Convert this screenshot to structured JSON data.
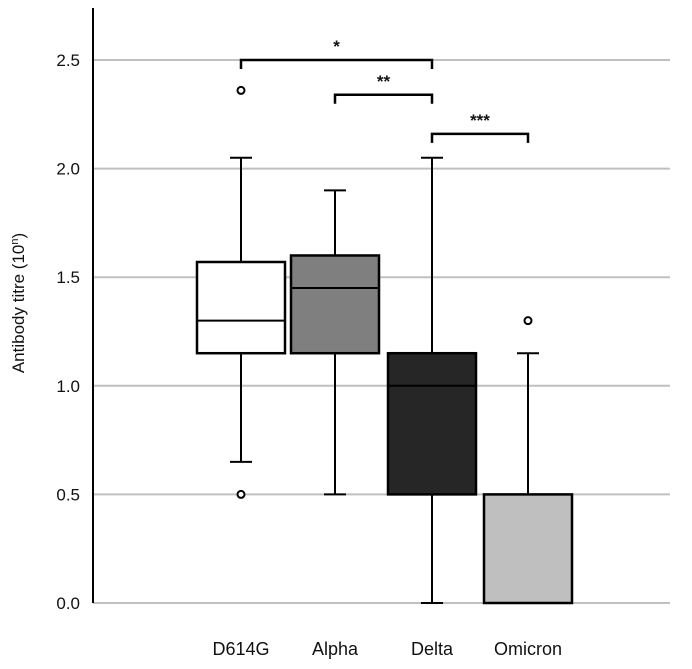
{
  "chart_data": {
    "type": "box",
    "ylabel_main": "Antibody titre (10",
    "ylabel_sup": "n",
    "ylabel_end": ")",
    "xlabel": "",
    "ylim": [
      0,
      2.7
    ],
    "yticks": [
      0.0,
      0.5,
      1.0,
      1.5,
      2.0,
      2.5
    ],
    "ytick_labels": [
      "0.0",
      "0.5",
      "1.0",
      "1.5",
      "2.0",
      "2.5"
    ],
    "grid": true,
    "categories": [
      "D614G",
      "Alpha",
      "Delta",
      "Omicron"
    ],
    "boxes": [
      {
        "name": "D614G",
        "whisker_low": 0.65,
        "q1": 1.15,
        "median": 1.3,
        "q3": 1.57,
        "whisker_high": 2.05,
        "outliers": [
          0.5,
          2.36
        ],
        "fill": "#ffffff"
      },
      {
        "name": "Alpha",
        "whisker_low": 0.5,
        "q1": 1.15,
        "median": 1.45,
        "q3": 1.6,
        "whisker_high": 1.9,
        "outliers": [],
        "fill": "#7f7f7f"
      },
      {
        "name": "Delta",
        "whisker_low": 0.0,
        "q1": 0.5,
        "median": 1.0,
        "q3": 1.15,
        "whisker_high": 2.05,
        "outliers": [],
        "fill": "#262626"
      },
      {
        "name": "Omicron",
        "whisker_low": 0.0,
        "q1": 0.0,
        "median": 0.0,
        "q3": 0.5,
        "whisker_high": 1.15,
        "outliers": [
          1.3
        ],
        "fill": "#bfbfbf"
      }
    ],
    "significance": [
      {
        "from": "D614G",
        "to": "Delta",
        "level": 2.5,
        "label": "*"
      },
      {
        "from": "Alpha",
        "to": "Delta",
        "level": 2.34,
        "label": "**"
      },
      {
        "from": "Delta",
        "to": "Omicron",
        "level": 2.16,
        "label": "***"
      }
    ],
    "colors": {
      "gridline": "#c0c0c0",
      "axis": "#000000",
      "median_on_dark": "#000000"
    }
  }
}
